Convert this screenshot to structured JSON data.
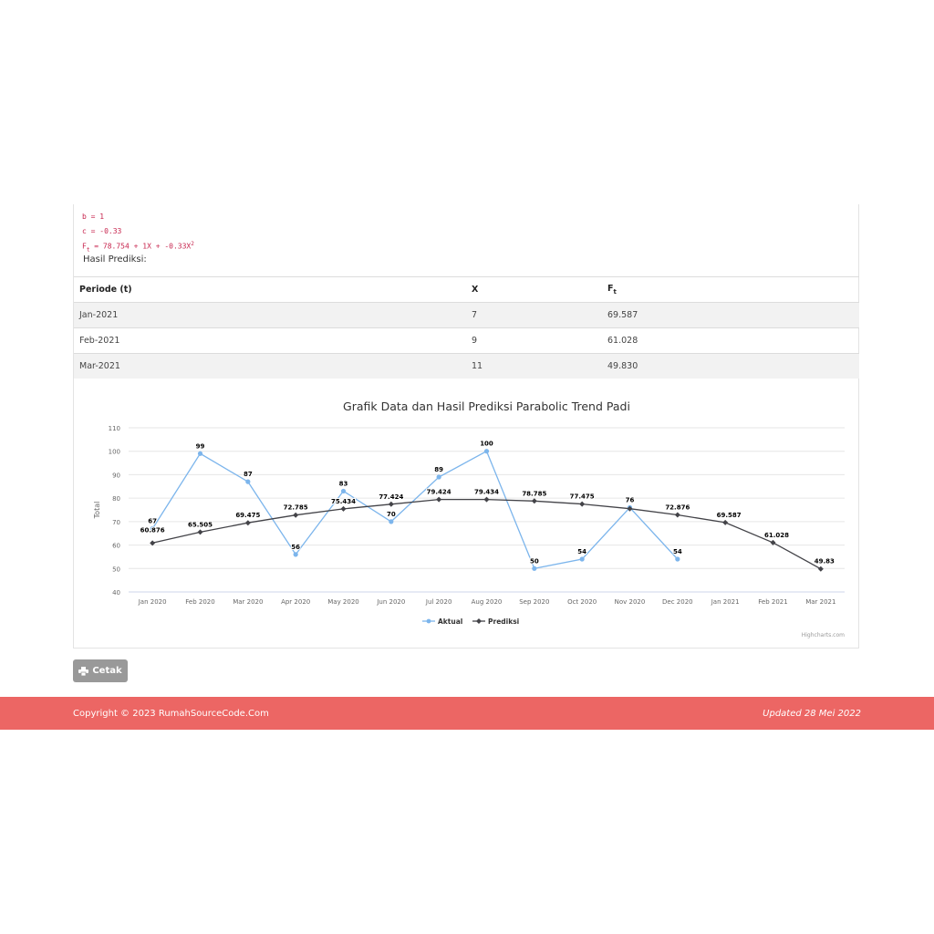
{
  "formula": {
    "line_b": "b = 1",
    "line_c": "c = -0.33",
    "line_ft_prefix": "F",
    "line_ft_sub": "t",
    "line_ft_body": " = 78.754 + 1X + -0.33X",
    "line_ft_sup": "2",
    "hasil_label": "Hasil Prediksi:"
  },
  "table": {
    "headers": {
      "periode": "Periode (t)",
      "x": "X",
      "ft": "F",
      "ft_sub": "t"
    },
    "rows": [
      {
        "periode": "Jan-2021",
        "x": "7",
        "ft": "69.587"
      },
      {
        "periode": "Feb-2021",
        "x": "9",
        "ft": "61.028"
      },
      {
        "periode": "Mar-2021",
        "x": "11",
        "ft": "49.830"
      }
    ]
  },
  "chart_data": {
    "type": "line",
    "title": "Grafik Data dan Hasil Prediksi Parabolic Trend Padi",
    "ylabel": "Total",
    "xlabel": "",
    "ylim": [
      40,
      110
    ],
    "yticks": [
      40,
      50,
      60,
      70,
      80,
      90,
      100,
      110
    ],
    "grid": true,
    "legend_position": "bottom",
    "credits": "Highcharts.com",
    "categories": [
      "Jan 2020",
      "Feb 2020",
      "Mar 2020",
      "Apr 2020",
      "May 2020",
      "Jun 2020",
      "Jul 2020",
      "Aug 2020",
      "Sep 2020",
      "Oct 2020",
      "Nov 2020",
      "Dec 2020",
      "Jan 2021",
      "Feb 2021",
      "Mar 2021"
    ],
    "series": [
      {
        "name": "Aktual",
        "color": "#7cb5ec",
        "marker": "circle",
        "values": [
          67,
          99,
          87,
          56,
          83,
          70,
          89,
          100,
          50,
          54,
          76,
          54,
          null,
          null,
          null
        ],
        "labels": [
          "67",
          "99",
          "87",
          "56",
          "83",
          "70",
          "89",
          "100",
          "50",
          "54",
          "76",
          "54",
          "",
          "",
          ""
        ]
      },
      {
        "name": "Prediksi",
        "color": "#434348",
        "marker": "diamond",
        "values": [
          60.876,
          65.505,
          69.475,
          72.785,
          75.434,
          77.424,
          79.424,
          79.434,
          78.785,
          77.475,
          75.505,
          72.876,
          69.587,
          61.028,
          49.83
        ],
        "labels": [
          "60.876",
          "65.505",
          "69.475",
          "72.785",
          "75.434",
          "77.424",
          "79.424",
          "79.434",
          "78.785",
          "77.475",
          "",
          "72.876",
          "69.587",
          "61.028",
          "49.83"
        ]
      }
    ]
  },
  "button": {
    "cetak_label": "Cetak"
  },
  "footer": {
    "copyright": "Copyright © 2023 RumahSourceCode.Com",
    "updated": "Updated 28 Mei 2022",
    "bg_color": "#ec6664"
  }
}
